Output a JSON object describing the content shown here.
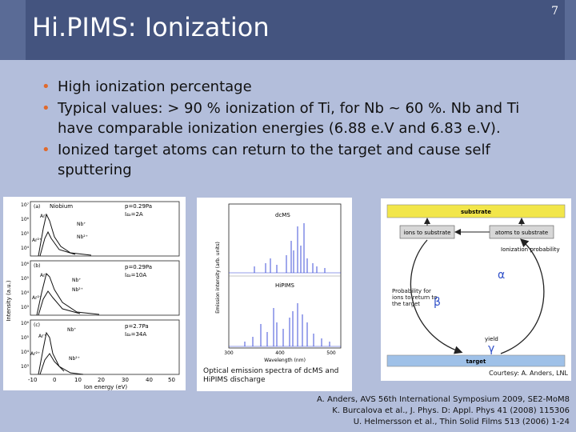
{
  "slide": {
    "title": "Hi.PIMS: Ionization",
    "number": "7"
  },
  "bullets": [
    "High ionization percentage",
    "Typical values: > 90 % ionization of Ti, for Nb ~ 60 %. Nb and Ti have comparable ionization energies (6.88 e.V and 6.83 e.V).",
    "Ionized target atoms can return to the target and cause self sputtering"
  ],
  "figure_nb": {
    "ylabel": "Intensity (a.u.)",
    "xlabel": "Ion energy (eV)",
    "x_ticks": [
      "-10",
      "0",
      "10",
      "20",
      "30",
      "40",
      "50"
    ],
    "y_ticks": [
      "10⁷",
      "10⁶",
      "10⁵",
      "10⁴",
      "10³"
    ],
    "panels": [
      {
        "tag": "(a)",
        "title": "Niobium",
        "p": "p=0.29Pa",
        "i": "I₄ₐ=2A",
        "labels": [
          "Ar⁺",
          "Nb⁺",
          "Ar²⁺",
          "Nb²⁺"
        ]
      },
      {
        "tag": "(b)",
        "p": "p=0.29Pa",
        "i": "I₄ₐ=10A",
        "labels": [
          "Ar⁺",
          "Nb⁺",
          "Ar²⁺",
          "Nb²⁺"
        ]
      },
      {
        "tag": "(c)",
        "p": "p=2.7Pa",
        "i": "I₄ₐ=34A",
        "labels": [
          "Ar⁺",
          "Nb⁺",
          "Ar²⁺",
          "Nb²⁺"
        ]
      }
    ]
  },
  "figure_oes": {
    "ylabel": "Emission intensity (arb. units)",
    "xlabel": "Wavelength (nm)",
    "x_ticks": [
      "300",
      "400",
      "500"
    ],
    "labels": {
      "dcms": "dcMS",
      "hipims": "HiPIMS"
    },
    "caption": "Optical emission spectra of dcMS and HiPIMS discharge"
  },
  "figure_cycle": {
    "substrate": "substrate",
    "target": "target",
    "ions_to_substrate": "ions to substrate",
    "atoms_to_substrate": "atoms to substrate",
    "ionization_probability": "Ionization probability",
    "alpha": "α",
    "return_probability": "Probability for ions to return to the target",
    "beta": "β",
    "yield": "yield",
    "gamma": "γ",
    "colors": {
      "substrate": "#f2e64a",
      "target": "#9fc1e8",
      "box": "#d7d7d7"
    }
  },
  "courtesy": "Courtesy: A. Anders, LNL",
  "references": [
    "A. Anders, AVS 56th International Symposium 2009, SE2-MoM8",
    "K. Burcalova et al., J. Phys. D: Appl. Phys 41 (2008) 115306",
    "U. Helmersson et al., Thin Solid Films 513 (2006) 1-24"
  ],
  "colors": {
    "title_bar": "#44547f",
    "background": "#b3bedb",
    "bullet": "#e06a2c",
    "spectrum": "#2c3fd4"
  }
}
